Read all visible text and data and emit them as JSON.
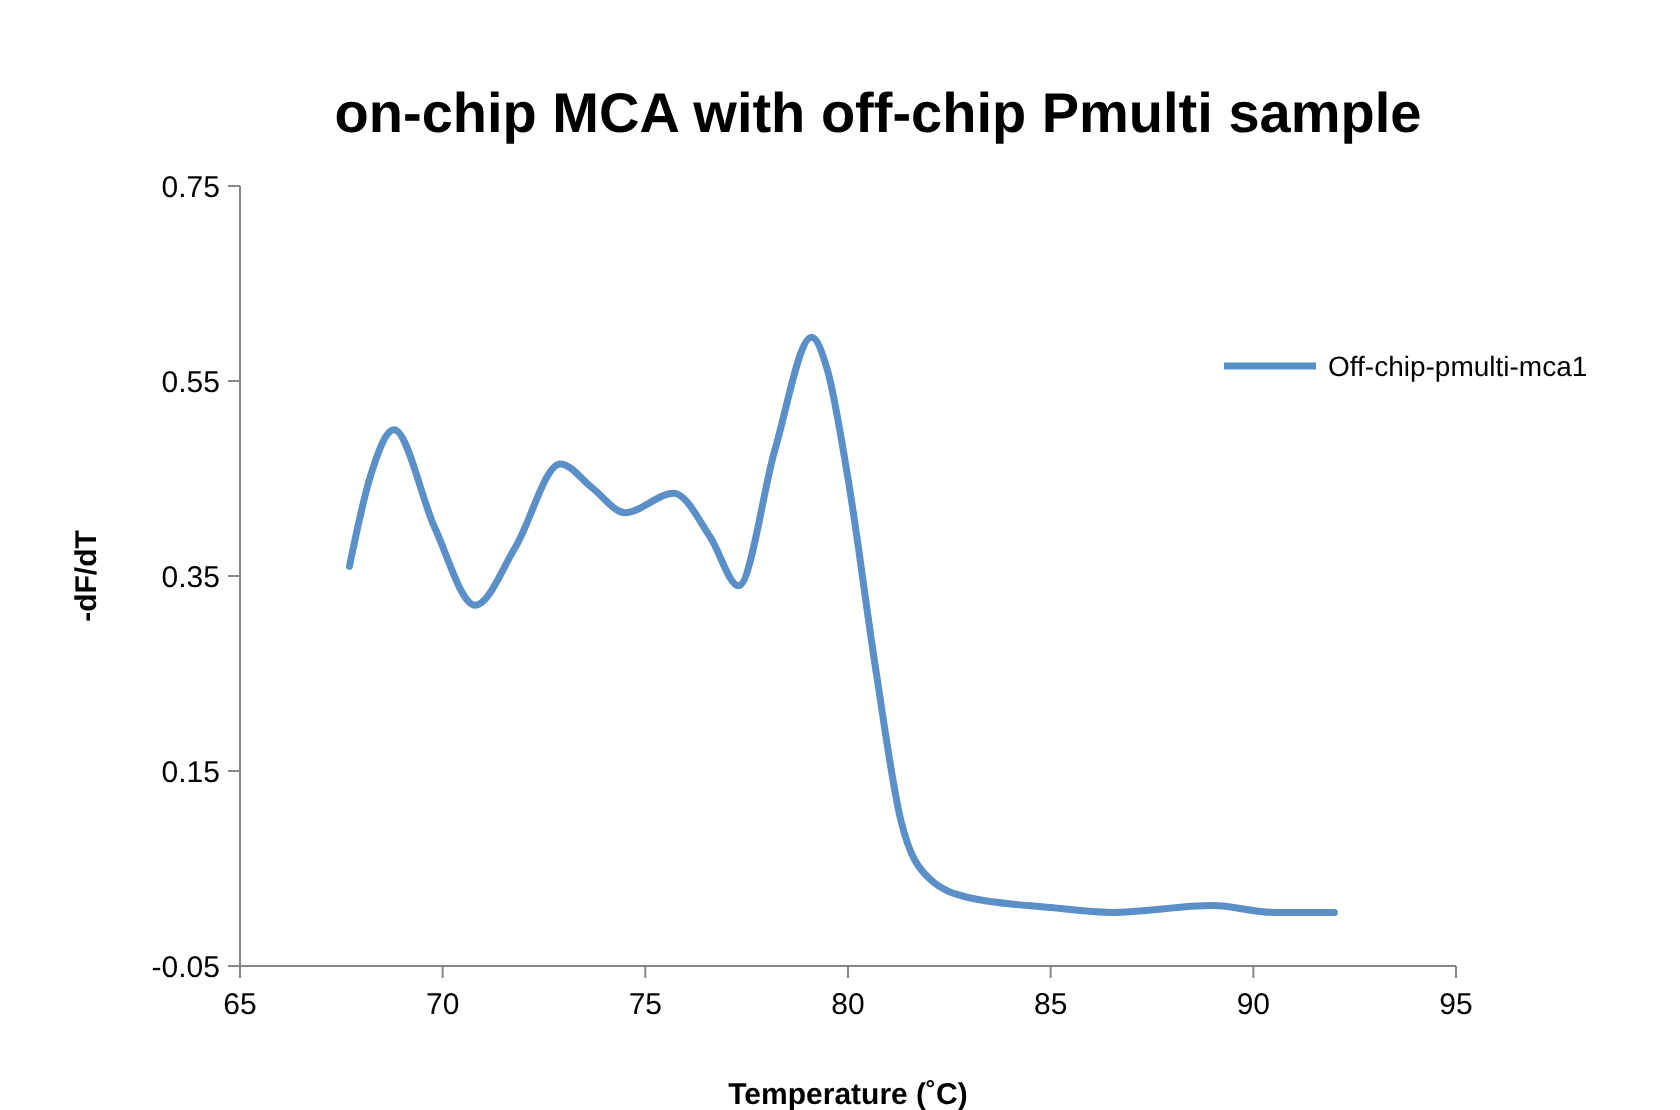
{
  "chart_data": {
    "type": "line",
    "title": "on-chip MCA with off-chip Pmulti sample",
    "xlabel": "Temperature (˚C)",
    "ylabel": "-dF/dT",
    "x": [
      67.7,
      68.2,
      68.8,
      69.8,
      70.8,
      71.8,
      72.9,
      73.7,
      74.5,
      75.7,
      76.6,
      77.3,
      78.2,
      79.1,
      79.5,
      80,
      80.7,
      81.3,
      82,
      83,
      85,
      86.5,
      89,
      90.5,
      92
    ],
    "series": [
      {
        "name": "Off-chip-pmulti-mca1",
        "color": "#5b8fc7",
        "values": [
          0.36,
          0.45,
          0.5,
          0.4,
          0.32,
          0.38,
          0.465,
          0.44,
          0.415,
          0.435,
          0.39,
          0.34,
          0.48,
          0.595,
          0.56,
          0.45,
          0.25,
          0.1,
          0.04,
          0.02,
          0.01,
          0.005,
          0.012,
          0.005,
          0.005
        ]
      }
    ],
    "xlim": [
      65,
      95
    ],
    "xticks": [
      65,
      70,
      75,
      80,
      85,
      90,
      95
    ],
    "ylim": [
      -0.05,
      0.75
    ],
    "yticks": [
      -0.05,
      0.15,
      0.35,
      0.55,
      0.75
    ],
    "grid": false,
    "legend": "right",
    "marker": "none",
    "line_style": "solid"
  }
}
